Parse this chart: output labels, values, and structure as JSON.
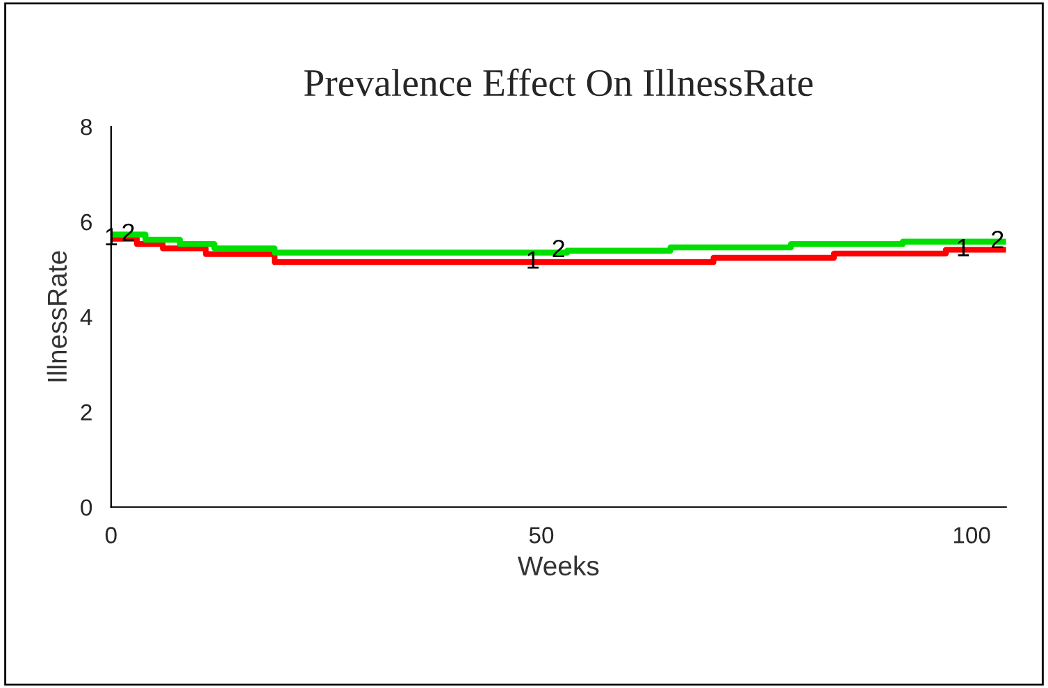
{
  "chart_data": {
    "type": "step",
    "title": "Prevalence Effect On IllnessRate",
    "xlabel": "Weeks",
    "ylabel": "IllnessRate",
    "xlim": [
      0,
      104
    ],
    "xticks": [
      0,
      50,
      100
    ],
    "ylim": [
      0,
      8
    ],
    "yticks": [
      0,
      2,
      4,
      6,
      8
    ],
    "grid": false,
    "legend": false,
    "marker": "none",
    "line_style": "solid",
    "series": [
      {
        "color": "#ff0000",
        "x": [
          0,
          3,
          6,
          11,
          19,
          55,
          70,
          84,
          97,
          104
        ],
        "values": [
          5.64,
          5.53,
          5.44,
          5.32,
          5.15,
          5.15,
          5.24,
          5.33,
          5.41,
          5.41
        ]
      },
      {
        "color": "#00e000",
        "x": [
          0,
          4,
          8,
          12,
          19,
          53,
          65,
          79,
          92,
          104
        ],
        "values": [
          5.73,
          5.62,
          5.53,
          5.44,
          5.35,
          5.39,
          5.46,
          5.53,
          5.58,
          5.58
        ]
      }
    ],
    "annotations": [
      {
        "text": "1",
        "x": 0,
        "y": 5.64
      },
      {
        "text": "2",
        "x": 2,
        "y": 5.73
      },
      {
        "text": "1",
        "x": 49,
        "y": 5.15
      },
      {
        "text": "2",
        "x": 52,
        "y": 5.39
      },
      {
        "text": "1",
        "x": 99,
        "y": 5.41
      },
      {
        "text": "2",
        "x": 103,
        "y": 5.58
      }
    ]
  }
}
